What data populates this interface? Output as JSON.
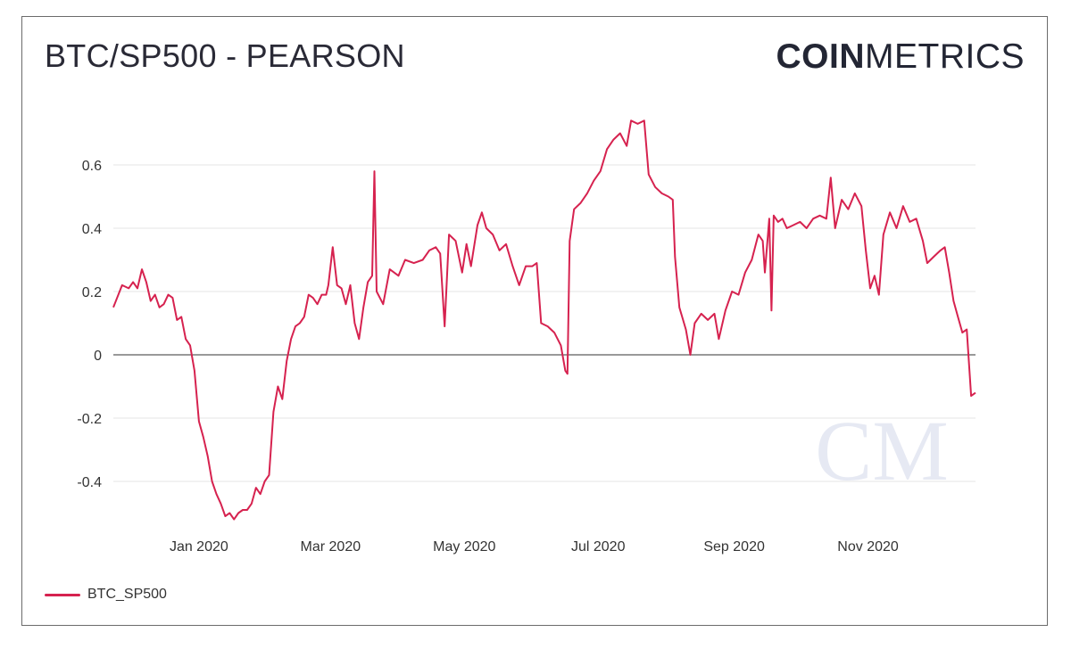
{
  "header": {
    "title": "BTC/SP500 - PEARSON",
    "logo_bold": "COIN",
    "logo_light": "METRICS",
    "watermark": "CM"
  },
  "colors": {
    "series": "#d6224f",
    "grid": "#e6e6e6",
    "zero_line": "#333333",
    "watermark": "#e6e9f3"
  },
  "chart_data": {
    "type": "line",
    "title": "BTC/SP500 - PEARSON",
    "xlabel": "",
    "ylabel": "",
    "ylim": [
      -0.55,
      0.75
    ],
    "xlim": [
      "2019-11-23",
      "2020-12-20"
    ],
    "y_ticks": [
      {
        "value": -0.4,
        "label": "-0.4"
      },
      {
        "value": -0.2,
        "label": "-0.2"
      },
      {
        "value": 0,
        "label": "0"
      },
      {
        "value": 0.2,
        "label": "0.2"
      },
      {
        "value": 0.4,
        "label": "0.4"
      },
      {
        "value": 0.6,
        "label": "0.6"
      }
    ],
    "x_ticks": [
      {
        "value": "2020-01-01",
        "label": "Jan 2020"
      },
      {
        "value": "2020-03-01",
        "label": "Mar 2020"
      },
      {
        "value": "2020-05-01",
        "label": "May 2020"
      },
      {
        "value": "2020-07-01",
        "label": "Jul 2020"
      },
      {
        "value": "2020-09-01",
        "label": "Sep 2020"
      },
      {
        "value": "2020-11-01",
        "label": "Nov 2020"
      }
    ],
    "grid": true,
    "legend": "bottom-left",
    "series": [
      {
        "name": "BTC_SP500",
        "points": [
          [
            "2019-11-23",
            0.15
          ],
          [
            "2019-11-27",
            0.22
          ],
          [
            "2019-11-30",
            0.21
          ],
          [
            "2019-12-02",
            0.23
          ],
          [
            "2019-12-04",
            0.21
          ],
          [
            "2019-12-06",
            0.27
          ],
          [
            "2019-12-08",
            0.23
          ],
          [
            "2019-12-10",
            0.17
          ],
          [
            "2019-12-12",
            0.19
          ],
          [
            "2019-12-14",
            0.15
          ],
          [
            "2019-12-16",
            0.16
          ],
          [
            "2019-12-18",
            0.19
          ],
          [
            "2019-12-20",
            0.18
          ],
          [
            "2019-12-22",
            0.11
          ],
          [
            "2019-12-24",
            0.12
          ],
          [
            "2019-12-26",
            0.05
          ],
          [
            "2019-12-28",
            0.03
          ],
          [
            "2019-12-30",
            -0.05
          ],
          [
            "2020-01-01",
            -0.21
          ],
          [
            "2020-01-03",
            -0.26
          ],
          [
            "2020-01-05",
            -0.32
          ],
          [
            "2020-01-07",
            -0.4
          ],
          [
            "2020-01-09",
            -0.44
          ],
          [
            "2020-01-11",
            -0.47
          ],
          [
            "2020-01-13",
            -0.51
          ],
          [
            "2020-01-15",
            -0.5
          ],
          [
            "2020-01-17",
            -0.52
          ],
          [
            "2020-01-19",
            -0.5
          ],
          [
            "2020-01-21",
            -0.49
          ],
          [
            "2020-01-23",
            -0.49
          ],
          [
            "2020-01-25",
            -0.47
          ],
          [
            "2020-01-27",
            -0.42
          ],
          [
            "2020-01-29",
            -0.44
          ],
          [
            "2020-01-31",
            -0.4
          ],
          [
            "2020-02-02",
            -0.38
          ],
          [
            "2020-02-04",
            -0.18
          ],
          [
            "2020-02-06",
            -0.1
          ],
          [
            "2020-02-08",
            -0.14
          ],
          [
            "2020-02-10",
            -0.02
          ],
          [
            "2020-02-12",
            0.05
          ],
          [
            "2020-02-14",
            0.09
          ],
          [
            "2020-02-16",
            0.1
          ],
          [
            "2020-02-18",
            0.12
          ],
          [
            "2020-02-20",
            0.19
          ],
          [
            "2020-02-22",
            0.18
          ],
          [
            "2020-02-24",
            0.16
          ],
          [
            "2020-02-26",
            0.19
          ],
          [
            "2020-02-28",
            0.19
          ],
          [
            "2020-02-29",
            0.22
          ],
          [
            "2020-03-02",
            0.34
          ],
          [
            "2020-03-04",
            0.22
          ],
          [
            "2020-03-06",
            0.21
          ],
          [
            "2020-03-08",
            0.16
          ],
          [
            "2020-03-10",
            0.22
          ],
          [
            "2020-03-12",
            0.1
          ],
          [
            "2020-03-14",
            0.05
          ],
          [
            "2020-03-16",
            0.15
          ],
          [
            "2020-03-18",
            0.23
          ],
          [
            "2020-03-20",
            0.25
          ],
          [
            "2020-03-21",
            0.58
          ],
          [
            "2020-03-22",
            0.2
          ],
          [
            "2020-03-25",
            0.16
          ],
          [
            "2020-03-28",
            0.27
          ],
          [
            "2020-04-01",
            0.25
          ],
          [
            "2020-04-04",
            0.3
          ],
          [
            "2020-04-08",
            0.29
          ],
          [
            "2020-04-12",
            0.3
          ],
          [
            "2020-04-15",
            0.33
          ],
          [
            "2020-04-18",
            0.34
          ],
          [
            "2020-04-20",
            0.32
          ],
          [
            "2020-04-22",
            0.09
          ],
          [
            "2020-04-24",
            0.38
          ],
          [
            "2020-04-27",
            0.36
          ],
          [
            "2020-04-30",
            0.26
          ],
          [
            "2020-05-02",
            0.35
          ],
          [
            "2020-05-04",
            0.28
          ],
          [
            "2020-05-07",
            0.41
          ],
          [
            "2020-05-09",
            0.45
          ],
          [
            "2020-05-11",
            0.4
          ],
          [
            "2020-05-14",
            0.38
          ],
          [
            "2020-05-17",
            0.33
          ],
          [
            "2020-05-20",
            0.35
          ],
          [
            "2020-05-23",
            0.28
          ],
          [
            "2020-05-26",
            0.22
          ],
          [
            "2020-05-29",
            0.28
          ],
          [
            "2020-06-01",
            0.28
          ],
          [
            "2020-06-03",
            0.29
          ],
          [
            "2020-06-05",
            0.1
          ],
          [
            "2020-06-08",
            0.09
          ],
          [
            "2020-06-11",
            0.07
          ],
          [
            "2020-06-14",
            0.03
          ],
          [
            "2020-06-16",
            -0.05
          ],
          [
            "2020-06-17",
            -0.06
          ],
          [
            "2020-06-18",
            0.36
          ],
          [
            "2020-06-20",
            0.46
          ],
          [
            "2020-06-23",
            0.48
          ],
          [
            "2020-06-26",
            0.51
          ],
          [
            "2020-06-29",
            0.55
          ],
          [
            "2020-07-02",
            0.58
          ],
          [
            "2020-07-05",
            0.65
          ],
          [
            "2020-07-08",
            0.68
          ],
          [
            "2020-07-11",
            0.7
          ],
          [
            "2020-07-14",
            0.66
          ],
          [
            "2020-07-16",
            0.74
          ],
          [
            "2020-07-19",
            0.73
          ],
          [
            "2020-07-22",
            0.74
          ],
          [
            "2020-07-24",
            0.57
          ],
          [
            "2020-07-27",
            0.53
          ],
          [
            "2020-07-30",
            0.51
          ],
          [
            "2020-08-02",
            0.5
          ],
          [
            "2020-08-04",
            0.49
          ],
          [
            "2020-08-05",
            0.31
          ],
          [
            "2020-08-07",
            0.15
          ],
          [
            "2020-08-10",
            0.08
          ],
          [
            "2020-08-12",
            0.0
          ],
          [
            "2020-08-14",
            0.1
          ],
          [
            "2020-08-17",
            0.13
          ],
          [
            "2020-08-20",
            0.11
          ],
          [
            "2020-08-23",
            0.13
          ],
          [
            "2020-08-25",
            0.05
          ],
          [
            "2020-08-28",
            0.14
          ],
          [
            "2020-08-31",
            0.2
          ],
          [
            "2020-09-03",
            0.19
          ],
          [
            "2020-09-06",
            0.26
          ],
          [
            "2020-09-09",
            0.3
          ],
          [
            "2020-09-12",
            0.38
          ],
          [
            "2020-09-14",
            0.36
          ],
          [
            "2020-09-15",
            0.26
          ],
          [
            "2020-09-17",
            0.43
          ],
          [
            "2020-09-18",
            0.14
          ],
          [
            "2020-09-19",
            0.44
          ],
          [
            "2020-09-21",
            0.42
          ],
          [
            "2020-09-23",
            0.43
          ],
          [
            "2020-09-25",
            0.4
          ],
          [
            "2020-09-28",
            0.41
          ],
          [
            "2020-10-01",
            0.42
          ],
          [
            "2020-10-04",
            0.4
          ],
          [
            "2020-10-07",
            0.43
          ],
          [
            "2020-10-10",
            0.44
          ],
          [
            "2020-10-13",
            0.43
          ],
          [
            "2020-10-15",
            0.56
          ],
          [
            "2020-10-17",
            0.4
          ],
          [
            "2020-10-20",
            0.49
          ],
          [
            "2020-10-23",
            0.46
          ],
          [
            "2020-10-26",
            0.51
          ],
          [
            "2020-10-29",
            0.47
          ],
          [
            "2020-10-31",
            0.33
          ],
          [
            "2020-11-02",
            0.21
          ],
          [
            "2020-11-04",
            0.25
          ],
          [
            "2020-11-06",
            0.19
          ],
          [
            "2020-11-08",
            0.38
          ],
          [
            "2020-11-11",
            0.45
          ],
          [
            "2020-11-14",
            0.4
          ],
          [
            "2020-11-17",
            0.47
          ],
          [
            "2020-11-20",
            0.42
          ],
          [
            "2020-11-23",
            0.43
          ],
          [
            "2020-11-26",
            0.36
          ],
          [
            "2020-11-28",
            0.29
          ],
          [
            "2020-12-01",
            0.31
          ],
          [
            "2020-12-04",
            0.33
          ],
          [
            "2020-12-06",
            0.34
          ],
          [
            "2020-12-08",
            0.26
          ],
          [
            "2020-12-10",
            0.17
          ],
          [
            "2020-12-12",
            0.12
          ],
          [
            "2020-12-14",
            0.07
          ],
          [
            "2020-12-16",
            0.08
          ],
          [
            "2020-12-18",
            -0.13
          ],
          [
            "2020-12-20",
            -0.12
          ]
        ]
      }
    ]
  },
  "legend": {
    "label": "BTC_SP500"
  }
}
